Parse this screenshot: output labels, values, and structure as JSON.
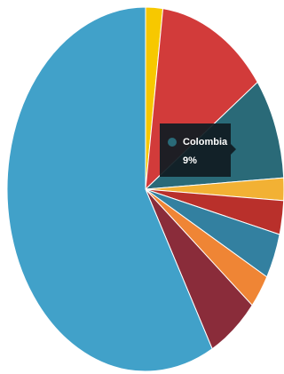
{
  "chart_data": {
    "type": "pie",
    "categories": [
      null,
      null,
      "Colombia",
      null,
      null,
      null,
      null,
      null,
      null
    ],
    "values": [
      2,
      13,
      9,
      2,
      3,
      4,
      3,
      6,
      58
    ],
    "value_labels": [
      null,
      null,
      "9%",
      null,
      null,
      null,
      null,
      null,
      null
    ],
    "colors": [
      "#f7c800",
      "#d23b3a",
      "#2a6a78",
      "#f2b134",
      "#b9302b",
      "#3380a0",
      "#ef8535",
      "#8a2c3a",
      "#41a1c9"
    ],
    "tooltip_index": 2
  }
}
